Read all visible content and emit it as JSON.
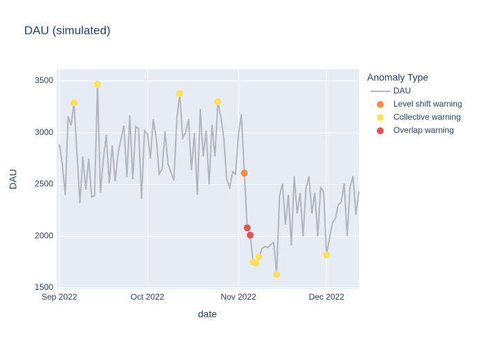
{
  "chart_data": {
    "type": "line",
    "title": "DAU (simulated)",
    "x_label": "date",
    "y_label": "DAU",
    "legend_title": "Anomaly Type",
    "legend_position": "right",
    "grid": true,
    "xlim": [
      -0.9,
      102
    ],
    "xticks": [
      {
        "value": 0,
        "label": "Sep 2022"
      },
      {
        "value": 30,
        "label": "Oct 2022"
      },
      {
        "value": 61,
        "label": "Nov 2022"
      },
      {
        "value": 91,
        "label": "Dec 2022"
      }
    ],
    "ylim": [
      1487,
      3614
    ],
    "yticks": [
      1500,
      2000,
      2500,
      3000,
      3500
    ],
    "series": [
      {
        "name": "DAU",
        "mode": "line",
        "color": "#b4b4bc",
        "x": [
          0,
          1,
          2,
          3,
          4,
          5,
          6,
          7,
          8,
          9,
          10,
          11,
          12,
          13,
          14,
          15,
          16,
          17,
          18,
          19,
          20,
          21,
          22,
          23,
          24,
          25,
          26,
          27,
          28,
          29,
          30,
          31,
          32,
          33,
          34,
          35,
          36,
          37,
          38,
          39,
          40,
          41,
          42,
          43,
          44,
          45,
          46,
          47,
          48,
          49,
          50,
          51,
          52,
          53,
          54,
          55,
          56,
          57,
          58,
          59,
          60,
          61,
          62,
          63,
          64,
          65,
          66,
          67,
          68,
          69,
          70,
          71,
          72,
          73,
          74,
          75,
          76,
          77,
          78,
          79,
          80,
          81,
          82,
          83,
          84,
          85,
          86,
          87,
          88,
          89,
          90,
          91,
          92,
          93,
          94,
          95,
          96,
          97,
          98,
          99,
          100,
          101,
          102
        ],
        "values": [
          2890,
          2700,
          2400,
          3160,
          3070,
          3290,
          2800,
          2320,
          2770,
          2450,
          2750,
          2380,
          2390,
          3470,
          2420,
          2750,
          2980,
          2510,
          2880,
          2530,
          2800,
          2940,
          3070,
          2570,
          3170,
          2550,
          3060,
          3040,
          2360,
          3020,
          2990,
          2750,
          3130,
          2950,
          2600,
          2650,
          3010,
          2700,
          2620,
          2540,
          3130,
          3380,
          2950,
          3000,
          3130,
          2640,
          3000,
          2400,
          3230,
          2770,
          3020,
          2500,
          3080,
          2770,
          3300,
          3150,
          2950,
          2550,
          2470,
          2620,
          2600,
          2980,
          3180,
          2610,
          2080,
          2010,
          1750,
          1740,
          1800,
          1880,
          1900,
          1890,
          1920,
          1940,
          1630,
          2390,
          2510,
          2110,
          2400,
          1910,
          2580,
          2220,
          2420,
          2000,
          2460,
          2580,
          2220,
          2420,
          2000,
          2470,
          2430,
          1820,
          1980,
          2130,
          2170,
          2300,
          2330,
          2510,
          2000,
          2470,
          2580,
          2210,
          2430
        ]
      },
      {
        "name": "Level shift warning",
        "mode": "markers",
        "color": "#f58d45",
        "x": [
          63
        ],
        "values": [
          2610
        ]
      },
      {
        "name": "Collective warning",
        "mode": "markers",
        "color": "#fde05d",
        "x": [
          5,
          13,
          41,
          54,
          66,
          67,
          68,
          74,
          91
        ],
        "values": [
          3290,
          3470,
          3380,
          3300,
          1750,
          1740,
          1800,
          1630,
          1820
        ]
      },
      {
        "name": "Overlap warning",
        "mode": "markers",
        "color": "#df5454",
        "x": [
          64,
          65
        ],
        "values": [
          2080,
          2010
        ]
      }
    ]
  }
}
